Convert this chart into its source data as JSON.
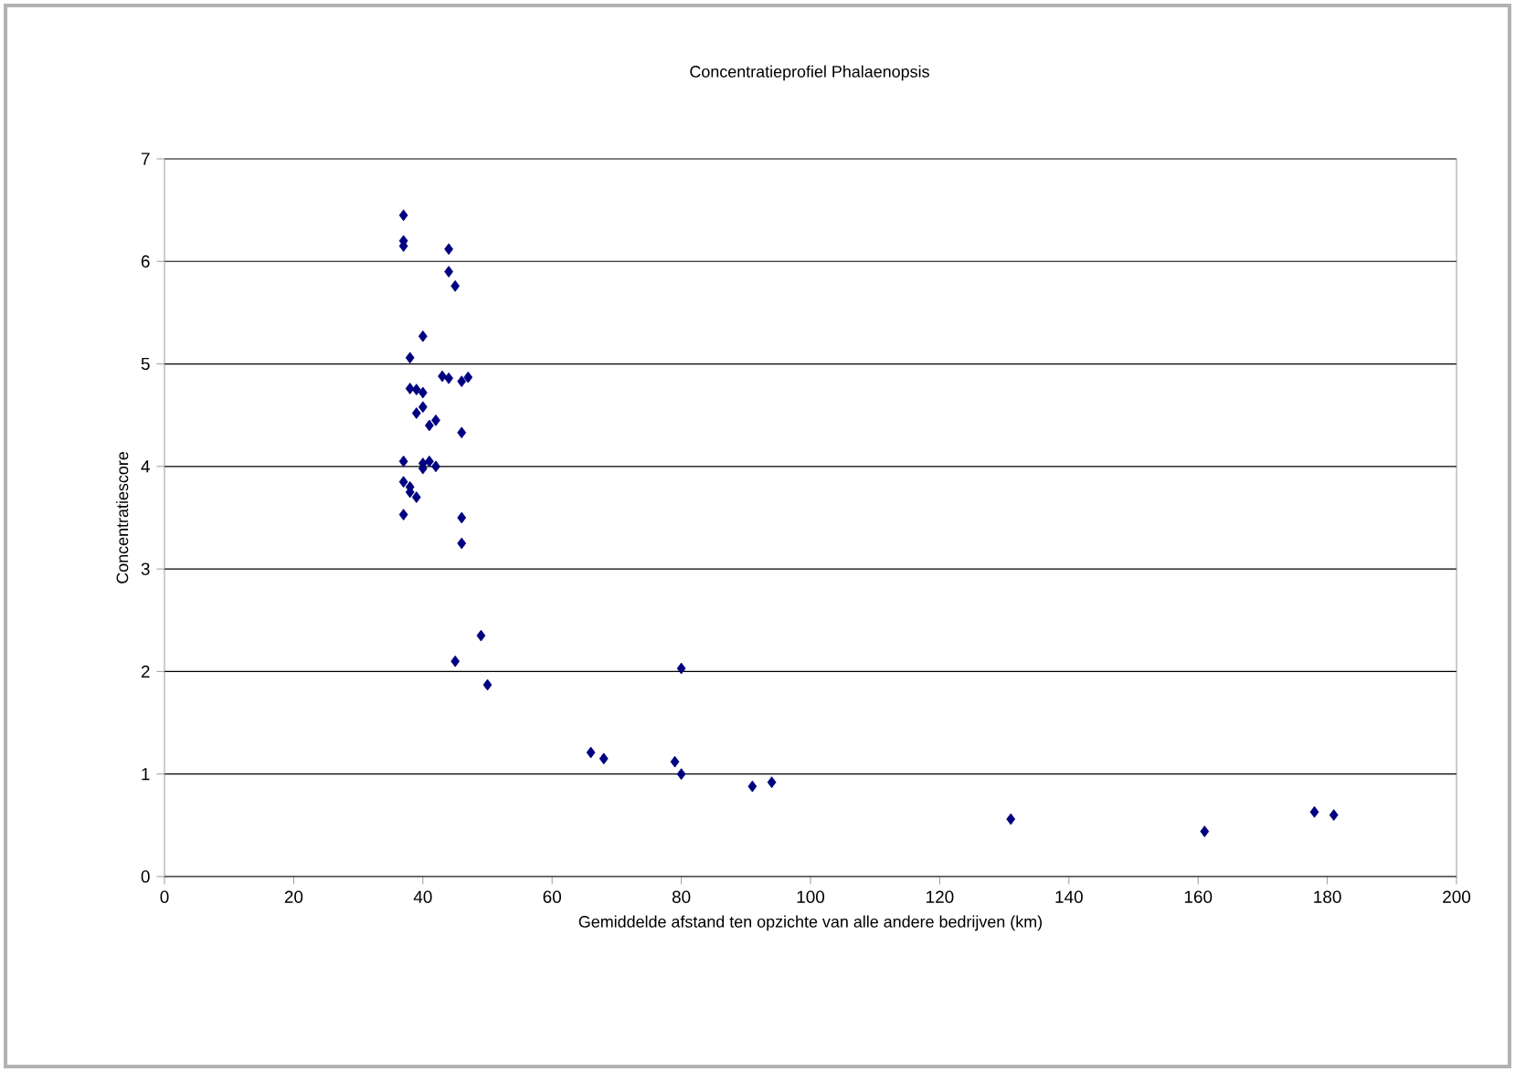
{
  "chart_data": {
    "type": "scatter",
    "title": "Concentratieprofiel Phalaenopsis",
    "xlabel": "Gemiddelde afstand ten opzichte van alle andere bedrijven (km)",
    "ylabel": "Concentratiescore",
    "xlim": [
      0,
      200
    ],
    "xticks": [
      0,
      20,
      40,
      60,
      80,
      100,
      120,
      140,
      160,
      180,
      200
    ],
    "ylim": [
      0,
      7
    ],
    "yticks": [
      0,
      1,
      2,
      3,
      4,
      5,
      6,
      7
    ],
    "grid": "y",
    "marker": "diamond",
    "series": [
      {
        "color": "#000080",
        "x": [
          37,
          37,
          37,
          44,
          44,
          45,
          40,
          38,
          43,
          44,
          46,
          47,
          38,
          39,
          40,
          39,
          40,
          41,
          42,
          46,
          37,
          40,
          41,
          40,
          42,
          38,
          38,
          37,
          39,
          37,
          46,
          46,
          49,
          45,
          50,
          80,
          66,
          68,
          79,
          80,
          91,
          94,
          131,
          161,
          178,
          181
        ],
        "values": [
          6.45,
          6.2,
          6.15,
          6.12,
          5.9,
          5.76,
          5.27,
          5.06,
          4.88,
          4.86,
          4.83,
          4.87,
          4.76,
          4.75,
          4.72,
          4.52,
          4.58,
          4.4,
          4.45,
          4.33,
          4.05,
          4.03,
          4.05,
          3.98,
          4.0,
          3.8,
          3.75,
          3.85,
          3.7,
          3.53,
          3.5,
          3.25,
          2.35,
          2.1,
          1.87,
          2.03,
          1.21,
          1.15,
          1.12,
          1.0,
          0.88,
          0.92,
          0.56,
          0.44,
          0.63,
          0.6
        ]
      }
    ]
  }
}
